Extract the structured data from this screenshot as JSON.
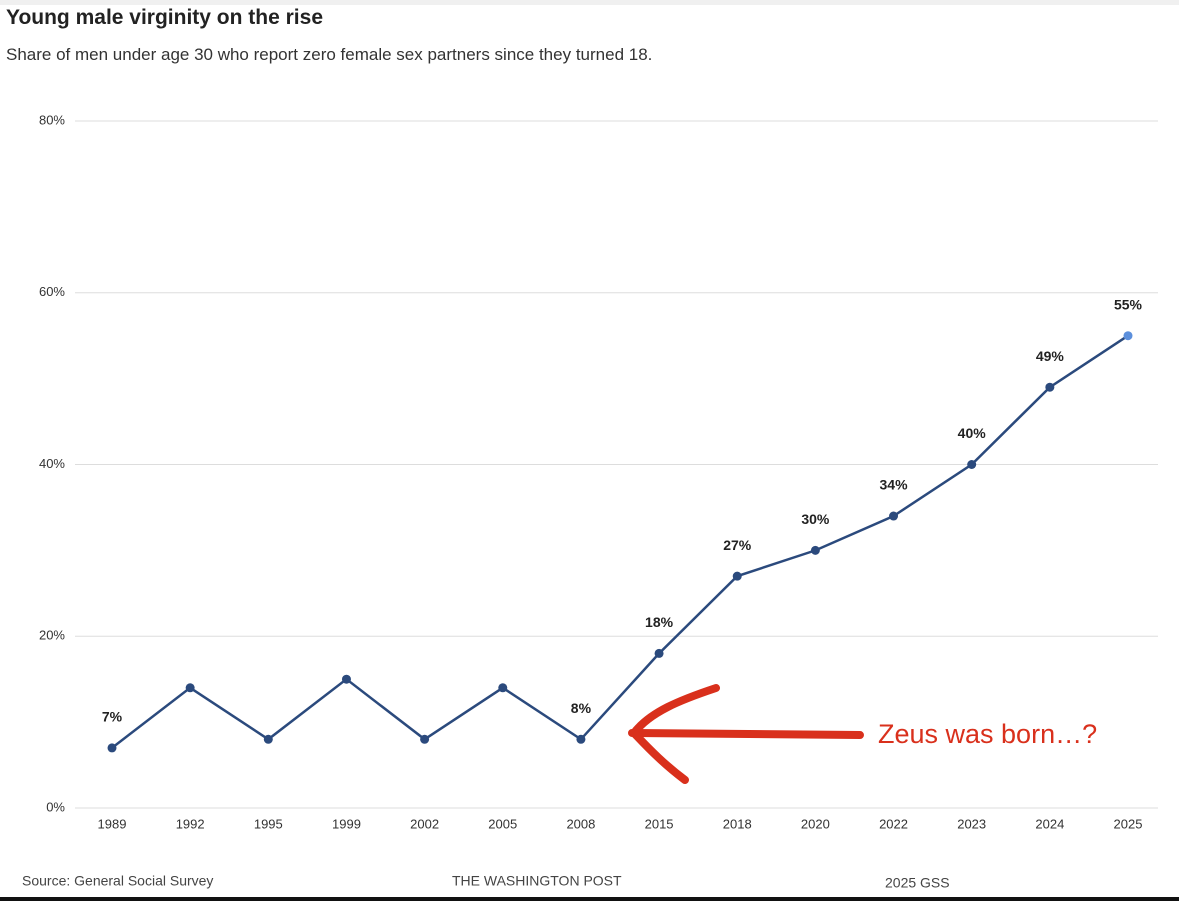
{
  "chart_data": {
    "type": "line",
    "title": "Young male virginity on the rise",
    "subtitle": "Share of men under age 30 who report zero female sex partners since they turned 18.",
    "categories": [
      "1989",
      "1992",
      "1995",
      "1999",
      "2002",
      "2005",
      "2008",
      "2015",
      "2018",
      "2020",
      "2022",
      "2023",
      "2024",
      "2025"
    ],
    "values": [
      7,
      14,
      8,
      15,
      8,
      14,
      8,
      18,
      27,
      30,
      34,
      40,
      49,
      55
    ],
    "value_labels": [
      "7%",
      null,
      null,
      null,
      null,
      null,
      "8%",
      "18%",
      "27%",
      "30%",
      "34%",
      "40%",
      "49%",
      "55%"
    ],
    "color": "#2b4a7d",
    "highlight_color": "#5b8fdc",
    "ylim": [
      0,
      80
    ],
    "yticks": [
      {
        "value": 0,
        "label": "0%"
      },
      {
        "value": 20,
        "label": "20%"
      },
      {
        "value": 40,
        "label": "40%"
      },
      {
        "value": 60,
        "label": "60%"
      },
      {
        "value": 80,
        "label": "80%"
      }
    ],
    "grid": true,
    "annotation": "Zeus was born…?",
    "source": "Source: General Social Survey",
    "publisher": "THE WASHINGTON POST",
    "note": "2025 GSS"
  }
}
